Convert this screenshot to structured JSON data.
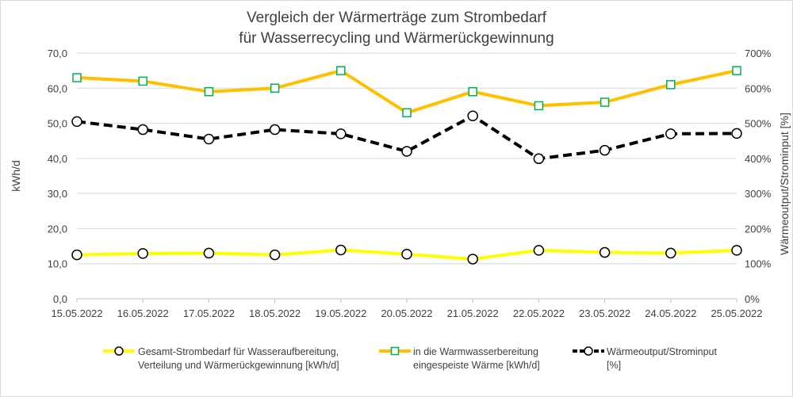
{
  "chart_data": {
    "type": "line",
    "title_line1": "Vergleich der Wärmerträge zum Strombedarf",
    "title_line2": "für Wasserrecycling und Wärmerückgewinnung",
    "ylabel": "kWh/d",
    "y2label": "Wärmeoutput/Strominput [%]",
    "categories": [
      "15.05.2022",
      "16.05.2022",
      "17.05.2022",
      "18.05.2022",
      "19.05.2022",
      "20.05.2022",
      "21.05.2022",
      "22.05.2022",
      "23.05.2022",
      "24.05.2022",
      "25.05.2022"
    ],
    "ylim": [
      0,
      70
    ],
    "y_ticks": [
      "0,0",
      "10,0",
      "20,0",
      "30,0",
      "40,0",
      "50,0",
      "60,0",
      "70,0"
    ],
    "y2lim": [
      0,
      700
    ],
    "y2_ticks": [
      "0%",
      "100%",
      "200%",
      "300%",
      "400%",
      "500%",
      "600%",
      "700%"
    ],
    "grid": true,
    "legend_position": "bottom",
    "series": [
      {
        "name_line1": "Gesamt-Strombedarf für Wasseraufbereitung,",
        "name_line2": "Verteilung und Wärmerückgewinnung [kWh/d]",
        "axis": "left",
        "color": "#ffff00",
        "marker": "circle",
        "style": "solid",
        "values": [
          12.5,
          12.9,
          13.0,
          12.5,
          13.9,
          12.7,
          11.3,
          13.8,
          13.2,
          13.0,
          13.8
        ]
      },
      {
        "name_line1": "in die Warmwasserbereitung",
        "name_line2": "eingespeiste Wärme [kWh/d]",
        "axis": "left",
        "color": "#ffc000",
        "marker_color": "#00b050",
        "marker": "square",
        "style": "solid",
        "values": [
          63,
          62,
          59,
          60,
          65,
          53,
          59,
          55,
          56,
          61,
          65
        ]
      },
      {
        "name_line1": "Wärmeoutput/Strominput",
        "name_line2": "[%]",
        "axis": "right",
        "color": "#000000",
        "marker": "circle",
        "style": "dashed",
        "values": [
          505,
          482,
          455,
          482,
          470,
          420,
          521,
          399,
          423,
          470,
          471
        ]
      }
    ]
  }
}
